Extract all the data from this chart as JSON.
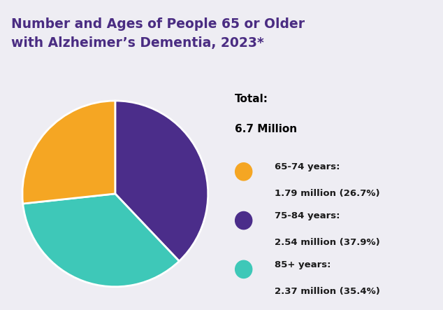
{
  "title_line1": "Number and Ages of People 65 or Older",
  "title_line2": "with Alzheimer’s Dementia, 2023*",
  "title_color": "#4a2c82",
  "title_fontsize": 13.5,
  "bg_color": "#eeedf3",
  "title_bg_color": "#ffffff",
  "separator_color": "#9b8fc0",
  "total_label_line1": "Total:",
  "total_label_line2": "6.7 Million",
  "slices": [
    37.9,
    35.4,
    26.7
  ],
  "colors": [
    "#4b2d8a",
    "#3ec8b8",
    "#f5a623"
  ],
  "legend_entries": [
    {
      "dot_color": "#f5a623",
      "line1": "65-74 years:",
      "line2": "1.79 million (26.7%)"
    },
    {
      "dot_color": "#4b2d8a",
      "line1": "75-84 years:",
      "line2": "2.54 million (37.9%)"
    },
    {
      "dot_color": "#3ec8b8",
      "line1": "85+ years:",
      "line2": "2.37 million (35.4%)"
    }
  ],
  "startangle": 90,
  "wedge_linewidth": 2.0,
  "wedge_edgecolor": "#ffffff"
}
